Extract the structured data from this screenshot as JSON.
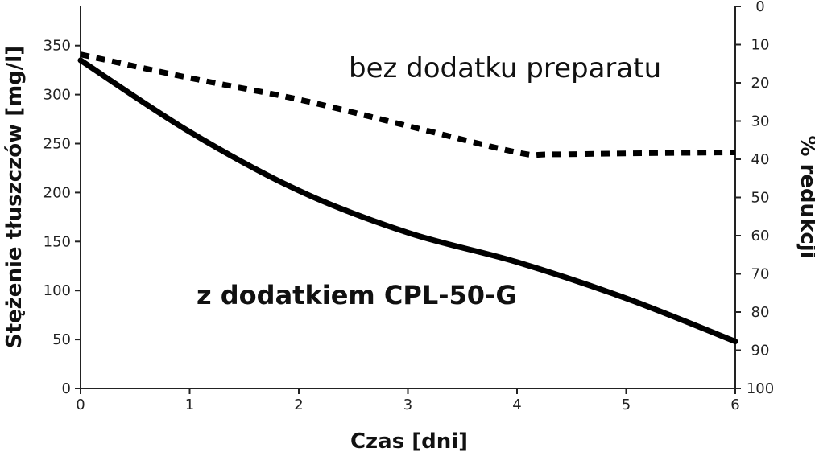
{
  "chart_data": {
    "type": "line",
    "title": "",
    "xlabel": "Czas [dni]",
    "ylabel": "Stężenie tłuszczów [mg/l]",
    "y2label": "% redukcji",
    "xlim": [
      0,
      6
    ],
    "ylim": [
      0,
      390
    ],
    "y2lim": [
      100,
      0
    ],
    "x_ticks": [
      "0",
      "1",
      "2",
      "3",
      "4",
      "5",
      "6"
    ],
    "y_ticks": [
      "0",
      "50",
      "100",
      "150",
      "200",
      "250",
      "300",
      "350"
    ],
    "y2_ticks": [
      "0",
      "10",
      "20",
      "30",
      "40",
      "50",
      "60",
      "70",
      "80",
      "90",
      "100"
    ],
    "grid": false,
    "series": [
      {
        "name": "bez dodatku preparatu",
        "style": "dotted",
        "color": "#000000",
        "x": [
          0,
          1,
          2,
          3,
          4,
          4.3,
          5,
          6
        ],
        "y": [
          341,
          317,
          295,
          268,
          241,
          239,
          240,
          241
        ]
      },
      {
        "name": "z dodatkiem CPL-50-G",
        "style": "solid",
        "color": "#000000",
        "x": [
          0,
          1,
          2,
          3,
          4,
          5,
          6
        ],
        "y": [
          335,
          262,
          202,
          159,
          129,
          92,
          48
        ]
      }
    ],
    "annotations": [
      {
        "text": "bez dodatku preparatu",
        "series": 0
      },
      {
        "text": "z dodatkiem CPL-50-G",
        "series": 1
      }
    ]
  }
}
